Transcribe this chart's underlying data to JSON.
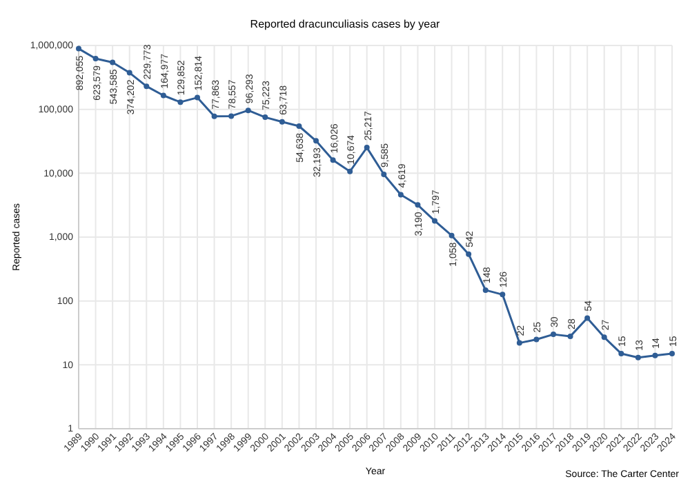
{
  "chart_data": {
    "type": "line",
    "title": "Reported dracunculiasis cases by year",
    "xlabel": "Year",
    "ylabel": "Reported cases",
    "categories": [
      "1989",
      "1990",
      "1991",
      "1992",
      "1993",
      "1994",
      "1995",
      "1996",
      "1997",
      "1998",
      "1999",
      "2000",
      "2001",
      "2002",
      "2003",
      "2004",
      "2005",
      "2006",
      "2007",
      "2008",
      "2009",
      "2010",
      "2011",
      "2012",
      "2013",
      "2014",
      "2015",
      "2016",
      "2017",
      "2018",
      "2019",
      "2020",
      "2021",
      "2022",
      "2023",
      "2024"
    ],
    "series": [
      {
        "color": "#2f5d95",
        "values": [
          892055,
          623579,
          543585,
          374202,
          229773,
          164977,
          129852,
          152814,
          77863,
          78557,
          96293,
          75223,
          63718,
          54638,
          32193,
          16026,
          10674,
          25217,
          9585,
          4619,
          3190,
          1797,
          1058,
          542,
          148,
          126,
          22,
          25,
          30,
          28,
          54,
          27,
          15,
          13,
          14,
          15
        ],
        "value_labels": [
          "892,055",
          "623,579",
          "543,585",
          "374,202",
          "229,773",
          "164,977",
          "129,852",
          "152,814",
          "77,863",
          "78,557",
          "96,293",
          "75,223",
          "63,718",
          "54,638",
          "32,193",
          "16,026",
          "10,674",
          "25,217",
          "9,585",
          "4,619",
          "3,190",
          "1,797",
          "1,058",
          "542",
          "148",
          "126",
          "22",
          "25",
          "30",
          "28",
          "54",
          "27",
          "15",
          "13",
          "14",
          "15"
        ]
      }
    ],
    "log": true,
    "ylim": [
      1,
      1000000
    ],
    "yticks": [
      1,
      10,
      100,
      {
        "value": 1000,
        "label": "1,000"
      },
      {
        "value": 10000,
        "label": "10,000"
      },
      {
        "value": 100000,
        "label": "100,000"
      },
      {
        "value": 1000000,
        "label": "1,000,000"
      }
    ],
    "grid": true,
    "marker": "circle",
    "line_style": "solid",
    "annotations": [
      "Source: The Carter Center"
    ]
  }
}
